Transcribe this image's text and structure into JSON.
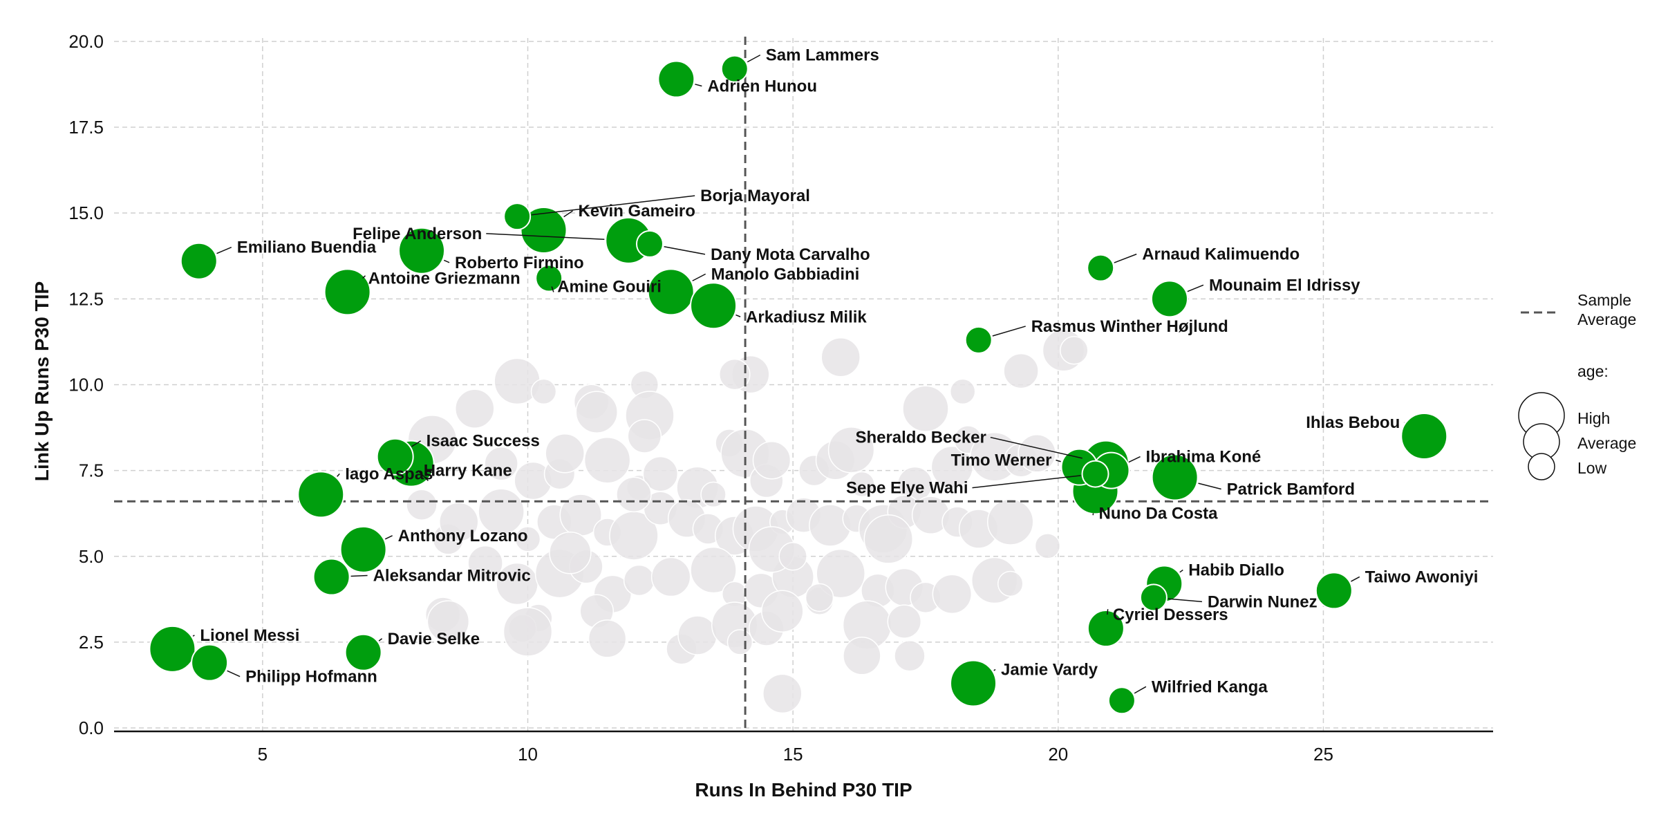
{
  "chart_data": {
    "type": "scatter",
    "xlabel": "Runs In Behind P30 TIP",
    "ylabel": "Link Up Runs P30 TIP",
    "xlim": [
      2.2,
      28.2
    ],
    "ylim": [
      -0.1,
      20.3
    ],
    "xticks": [
      "5",
      "10",
      "15",
      "20",
      "25"
    ],
    "xtick_values": [
      5,
      10,
      15,
      20,
      25
    ],
    "yticks": [
      "0.0",
      "2.5",
      "5.0",
      "7.5",
      "10.0",
      "12.5",
      "15.0",
      "17.5",
      "20.0"
    ],
    "ytick_values": [
      0,
      2.5,
      5,
      7.5,
      10,
      12.5,
      15,
      17.5,
      20
    ],
    "grid": true,
    "sample_average": {
      "x": 14.1,
      "y": 6.6
    },
    "highlight_color": "#009e0e",
    "background_color": "#e6e4e6",
    "legend": {
      "average_label": "Sample Average",
      "size_title": "age:",
      "size_entries": [
        "High",
        "Average",
        "Low"
      ],
      "placement": "right"
    },
    "highlighted": [
      {
        "name": "Sam Lammers",
        "x": 13.9,
        "y": 19.2,
        "size": "low"
      },
      {
        "name": "Adrien Hunou",
        "x": 12.8,
        "y": 18.9,
        "size": "average"
      },
      {
        "name": "Borja Mayoral",
        "x": 9.8,
        "y": 14.9,
        "size": "low"
      },
      {
        "name": "Kevin Gameiro",
        "x": 10.3,
        "y": 14.5,
        "size": "high"
      },
      {
        "name": "Felipe Anderson",
        "x": 11.9,
        "y": 14.2,
        "size": "high"
      },
      {
        "name": "Dany Mota Carvalho",
        "x": 12.3,
        "y": 14.1,
        "size": "low"
      },
      {
        "name": "Roberto Firmino",
        "x": 8.0,
        "y": 13.9,
        "size": "high"
      },
      {
        "name": "Emiliano Buendia",
        "x": 3.8,
        "y": 13.6,
        "size": "average"
      },
      {
        "name": "Amine Gouiri",
        "x": 10.4,
        "y": 13.1,
        "size": "low"
      },
      {
        "name": "Antoine Griezmann",
        "x": 6.6,
        "y": 12.7,
        "size": "high"
      },
      {
        "name": "Manolo Gabbiadini",
        "x": 12.7,
        "y": 12.7,
        "size": "high"
      },
      {
        "name": "Arkadiusz Milik",
        "x": 13.5,
        "y": 12.3,
        "size": "high"
      },
      {
        "name": "Arnaud Kalimuendo",
        "x": 20.8,
        "y": 13.4,
        "size": "low"
      },
      {
        "name": "Mounaim El Idrissy",
        "x": 22.1,
        "y": 12.5,
        "size": "average"
      },
      {
        "name": "Rasmus Winther Højlund",
        "x": 18.5,
        "y": 11.3,
        "size": "low"
      },
      {
        "name": "Ihlas Bebou",
        "x": 26.9,
        "y": 8.5,
        "size": "high"
      },
      {
        "name": "Sheraldo Becker",
        "x": 20.9,
        "y": 7.7,
        "size": "high"
      },
      {
        "name": "Ibrahima Koné",
        "x": 21.0,
        "y": 7.5,
        "size": "average"
      },
      {
        "name": "Timo Werner",
        "x": 20.4,
        "y": 7.6,
        "size": "average"
      },
      {
        "name": "Sepe Elye Wahi",
        "x": 20.7,
        "y": 7.4,
        "size": "low"
      },
      {
        "name": "Patrick Bamford",
        "x": 22.2,
        "y": 7.3,
        "size": "high"
      },
      {
        "name": "Nuno Da Costa",
        "x": 20.7,
        "y": 6.9,
        "size": "high"
      },
      {
        "name": "Isaac Success",
        "x": 7.5,
        "y": 7.9,
        "size": "average"
      },
      {
        "name": "Harry Kane",
        "x": 7.8,
        "y": 7.7,
        "size": "high"
      },
      {
        "name": "Iago Aspas",
        "x": 6.1,
        "y": 6.8,
        "size": "high"
      },
      {
        "name": "Anthony Lozano",
        "x": 6.9,
        "y": 5.2,
        "size": "high"
      },
      {
        "name": "Aleksandar Mitrovic",
        "x": 6.3,
        "y": 4.4,
        "size": "average"
      },
      {
        "name": "Habib Diallo",
        "x": 22.0,
        "y": 4.2,
        "size": "average"
      },
      {
        "name": "Darwin Nunez",
        "x": 21.8,
        "y": 3.8,
        "size": "low"
      },
      {
        "name": "Taiwo Awoniyi",
        "x": 25.2,
        "y": 4.0,
        "size": "average"
      },
      {
        "name": "Cyriel Dessers",
        "x": 20.9,
        "y": 2.9,
        "size": "average"
      },
      {
        "name": "Lionel Messi",
        "x": 3.3,
        "y": 2.3,
        "size": "high"
      },
      {
        "name": "Philipp Hofmann",
        "x": 4.0,
        "y": 1.9,
        "size": "average"
      },
      {
        "name": "Davie Selke",
        "x": 6.9,
        "y": 2.2,
        "size": "average"
      },
      {
        "name": "Jamie Vardy",
        "x": 18.4,
        "y": 1.3,
        "size": "high"
      },
      {
        "name": "Wilfried Kanga",
        "x": 21.2,
        "y": 0.8,
        "size": "low"
      }
    ],
    "background_points": [
      [
        8.5,
        5.5
      ],
      [
        9.0,
        9.3
      ],
      [
        9.8,
        10.1
      ],
      [
        10.3,
        9.8
      ],
      [
        11.2,
        9.5
      ],
      [
        11.3,
        9.2
      ],
      [
        12.2,
        10.0
      ],
      [
        12.3,
        9.1
      ],
      [
        12.2,
        8.5
      ],
      [
        14.2,
        10.3
      ],
      [
        13.9,
        10.3
      ],
      [
        15.9,
        10.8
      ],
      [
        17.5,
        9.3
      ],
      [
        18.2,
        9.8
      ],
      [
        19.3,
        10.4
      ],
      [
        20.1,
        11.0
      ],
      [
        20.3,
        11.0
      ],
      [
        8.2,
        8.4
      ],
      [
        9.5,
        7.7
      ],
      [
        10.1,
        7.2
      ],
      [
        10.6,
        7.4
      ],
      [
        10.7,
        8.0
      ],
      [
        11.5,
        7.8
      ],
      [
        12.1,
        7.0
      ],
      [
        12.5,
        7.4
      ],
      [
        13.2,
        7.0
      ],
      [
        13.8,
        8.3
      ],
      [
        14.1,
        8.0
      ],
      [
        14.5,
        7.2
      ],
      [
        14.6,
        7.8
      ],
      [
        15.4,
        7.5
      ],
      [
        15.8,
        7.8
      ],
      [
        16.1,
        8.1
      ],
      [
        16.3,
        7.1
      ],
      [
        17.3,
        7.1
      ],
      [
        18.0,
        7.6
      ],
      [
        18.3,
        8.4
      ],
      [
        18.8,
        7.9
      ],
      [
        19.3,
        7.8
      ],
      [
        19.6,
        8.0
      ],
      [
        8.0,
        6.5
      ],
      [
        8.7,
        6.0
      ],
      [
        9.5,
        6.3
      ],
      [
        10.0,
        5.5
      ],
      [
        10.5,
        6.0
      ],
      [
        11.0,
        6.2
      ],
      [
        11.5,
        5.7
      ],
      [
        12.0,
        5.6
      ],
      [
        12.5,
        6.4
      ],
      [
        13.0,
        6.1
      ],
      [
        13.4,
        5.8
      ],
      [
        13.9,
        5.6
      ],
      [
        14.3,
        5.8
      ],
      [
        14.8,
        6.0
      ],
      [
        15.2,
        6.2
      ],
      [
        15.7,
        5.9
      ],
      [
        16.2,
        6.1
      ],
      [
        16.7,
        5.8
      ],
      [
        17.1,
        6.3
      ],
      [
        17.6,
        6.2
      ],
      [
        18.1,
        6.0
      ],
      [
        18.5,
        5.8
      ],
      [
        19.1,
        6.0
      ],
      [
        19.8,
        5.3
      ],
      [
        9.2,
        4.8
      ],
      [
        9.8,
        4.2
      ],
      [
        10.2,
        3.2
      ],
      [
        10.6,
        4.5
      ],
      [
        11.1,
        4.7
      ],
      [
        11.6,
        3.9
      ],
      [
        12.1,
        4.3
      ],
      [
        12.7,
        4.4
      ],
      [
        13.5,
        4.6
      ],
      [
        13.9,
        3.9
      ],
      [
        14.4,
        4.0
      ],
      [
        15.0,
        4.4
      ],
      [
        15.5,
        3.7
      ],
      [
        15.9,
        4.5
      ],
      [
        16.6,
        4.0
      ],
      [
        17.1,
        4.1
      ],
      [
        17.5,
        3.8
      ],
      [
        18.0,
        3.9
      ],
      [
        18.8,
        4.3
      ],
      [
        19.1,
        4.2
      ],
      [
        8.4,
        3.3
      ],
      [
        8.5,
        3.1
      ],
      [
        9.9,
        2.9
      ],
      [
        10.0,
        2.8
      ],
      [
        11.3,
        3.4
      ],
      [
        11.5,
        2.6
      ],
      [
        12.9,
        2.3
      ],
      [
        13.2,
        2.7
      ],
      [
        13.9,
        3.0
      ],
      [
        14.0,
        2.5
      ],
      [
        14.5,
        2.9
      ],
      [
        14.8,
        3.4
      ],
      [
        15.5,
        3.8
      ],
      [
        16.4,
        3.0
      ],
      [
        17.1,
        3.1
      ],
      [
        16.3,
        2.1
      ],
      [
        17.2,
        2.1
      ],
      [
        14.8,
        1.0
      ],
      [
        14.6,
        5.2
      ],
      [
        13.5,
        6.8
      ],
      [
        12.0,
        6.8
      ],
      [
        10.8,
        5.1
      ],
      [
        15.0,
        5.0
      ],
      [
        16.8,
        5.5
      ]
    ]
  }
}
